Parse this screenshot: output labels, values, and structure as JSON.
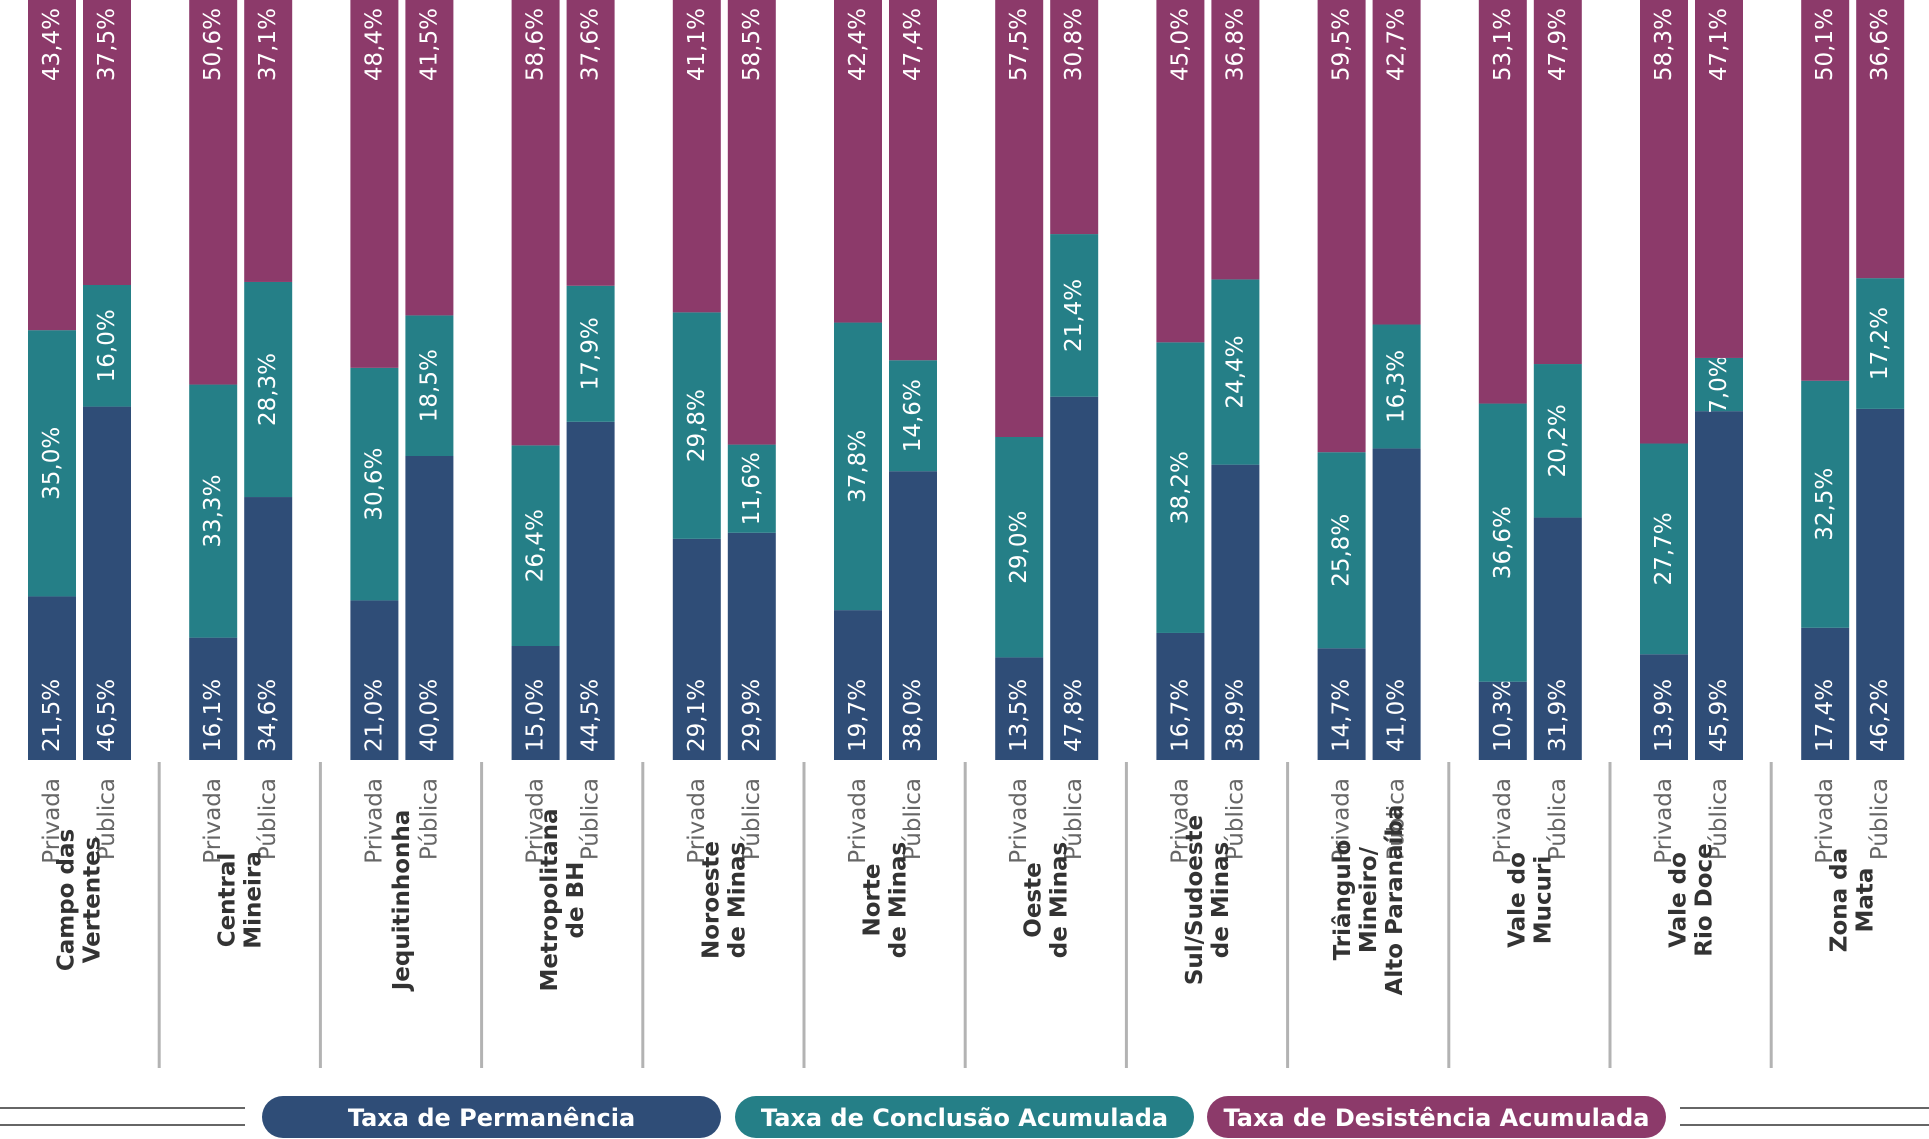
{
  "chart_data": {
    "type": "bar",
    "stacked": true,
    "orientation": "vertical-rotated-labels",
    "unit": "%",
    "series_order": [
      "Taxa de Permanência",
      "Taxa de Conclusão Acumulada",
      "Taxa de Desistência Acumulada"
    ],
    "colors": {
      "permanencia": "#2f4d77",
      "conclusao": "#257f87",
      "desistencia": "#8c3a6a",
      "separator": "#b3b3b3"
    },
    "groups": [
      {
        "region": [
          "Campo das",
          "Vertentes"
        ],
        "bars": [
          {
            "type": "Privada",
            "values": [
              21.5,
              35.0,
              43.4
            ],
            "labels": [
              "21,5%",
              "35,0%",
              "43,4%"
            ]
          },
          {
            "type": "Pública",
            "values": [
              46.5,
              16.0,
              37.5
            ],
            "labels": [
              "46,5%",
              "16,0%",
              "37,5%"
            ]
          }
        ]
      },
      {
        "region": [
          "Central",
          "Mineira"
        ],
        "bars": [
          {
            "type": "Privada",
            "values": [
              16.1,
              33.3,
              50.6
            ],
            "labels": [
              "16,1%",
              "33,3%",
              "50,6%"
            ]
          },
          {
            "type": "Pública",
            "values": [
              34.6,
              28.3,
              37.1
            ],
            "labels": [
              "34,6%",
              "28,3%",
              "37,1%"
            ]
          }
        ]
      },
      {
        "region": [
          "Jequitinhonha"
        ],
        "bars": [
          {
            "type": "Privada",
            "values": [
              21.0,
              30.6,
              48.4
            ],
            "labels": [
              "21,0%",
              "30,6%",
              "48,4%"
            ]
          },
          {
            "type": "Pública",
            "values": [
              40.0,
              18.5,
              41.5
            ],
            "labels": [
              "40,0%",
              "18,5%",
              "41,5%"
            ]
          }
        ]
      },
      {
        "region": [
          "Metropolitana",
          "de BH"
        ],
        "bars": [
          {
            "type": "Privada",
            "values": [
              15.0,
              26.4,
              58.6
            ],
            "labels": [
              "15,0%",
              "26,4%",
              "58,6%"
            ]
          },
          {
            "type": "Pública",
            "values": [
              44.5,
              17.9,
              37.6
            ],
            "labels": [
              "44,5%",
              "17,9%",
              "37,6%"
            ]
          }
        ]
      },
      {
        "region": [
          "Noroeste",
          "de Minas"
        ],
        "bars": [
          {
            "type": "Privada",
            "values": [
              29.1,
              29.8,
              41.1
            ],
            "labels": [
              "29,1%",
              "29,8%",
              "41,1%"
            ]
          },
          {
            "type": "Pública",
            "values": [
              29.9,
              11.6,
              58.5
            ],
            "labels": [
              "29,9%",
              "11,6%",
              "58,5%"
            ]
          }
        ]
      },
      {
        "region": [
          "Norte",
          "de Minas"
        ],
        "bars": [
          {
            "type": "Privada",
            "values": [
              19.7,
              37.8,
              42.4
            ],
            "labels": [
              "19,7%",
              "37,8%",
              "42,4%"
            ]
          },
          {
            "type": "Pública",
            "values": [
              38.0,
              14.6,
              47.4
            ],
            "labels": [
              "38,0%",
              "14,6%",
              "47,4%"
            ]
          }
        ]
      },
      {
        "region": [
          "Oeste",
          "de Minas"
        ],
        "bars": [
          {
            "type": "Privada",
            "values": [
              13.5,
              29.0,
              57.5
            ],
            "labels": [
              "13,5%",
              "29,0%",
              "57,5%"
            ]
          },
          {
            "type": "Pública",
            "values": [
              47.8,
              21.4,
              30.8
            ],
            "labels": [
              "47,8%",
              "21,4%",
              "30,8%"
            ]
          }
        ]
      },
      {
        "region": [
          "Sul/Sudoeste",
          "de Minas"
        ],
        "bars": [
          {
            "type": "Privada",
            "values": [
              16.7,
              38.2,
              45.0
            ],
            "labels": [
              "16,7%",
              "38,2%",
              "45,0%"
            ]
          },
          {
            "type": "Pública",
            "values": [
              38.9,
              24.4,
              36.8
            ],
            "labels": [
              "38,9%",
              "24,4%",
              "36,8%"
            ]
          }
        ]
      },
      {
        "region": [
          "Triângulo",
          "Mineiro/",
          "Alto Paranaíba"
        ],
        "bars": [
          {
            "type": "Privada",
            "values": [
              14.7,
              25.8,
              59.5
            ],
            "labels": [
              "14,7%",
              "25,8%",
              "59,5%"
            ]
          },
          {
            "type": "Pública",
            "values": [
              41.0,
              16.3,
              42.7
            ],
            "labels": [
              "41,0%",
              "16,3%",
              "42,7%"
            ]
          }
        ]
      },
      {
        "region": [
          "Vale do",
          "Mucuri"
        ],
        "bars": [
          {
            "type": "Privada",
            "values": [
              10.3,
              36.6,
              53.1
            ],
            "labels": [
              "10,3%",
              "36,6%",
              "53,1%"
            ]
          },
          {
            "type": "Pública",
            "values": [
              31.9,
              20.2,
              47.9
            ],
            "labels": [
              "31,9%",
              "20,2%",
              "47,9%"
            ]
          }
        ]
      },
      {
        "region": [
          "Vale do",
          "Rio Doce"
        ],
        "bars": [
          {
            "type": "Privada",
            "values": [
              13.9,
              27.7,
              58.3
            ],
            "labels": [
              "13,9%",
              "27,7%",
              "58,3%"
            ]
          },
          {
            "type": "Pública",
            "values": [
              45.9,
              7.0,
              47.1
            ],
            "labels": [
              "45,9%",
              "7,0%",
              "47,1%"
            ]
          }
        ]
      },
      {
        "region": [
          "Zona da",
          "Mata"
        ],
        "bars": [
          {
            "type": "Privada",
            "values": [
              17.4,
              32.5,
              50.1
            ],
            "labels": [
              "17,4%",
              "32,5%",
              "50,1%"
            ]
          },
          {
            "type": "Pública",
            "values": [
              46.2,
              17.2,
              36.6
            ],
            "labels": [
              "46,2%",
              "17,2%",
              "36,6%"
            ]
          }
        ]
      }
    ],
    "legend": {
      "position": "bottom",
      "items": [
        {
          "label": "Taxa de Permanência",
          "color": "#2f4d77"
        },
        {
          "label": "Taxa de Conclusão Acumulada",
          "color": "#257f87"
        },
        {
          "label": "Taxa de Desistência Acumulada",
          "color": "#8c3a6a"
        }
      ]
    }
  }
}
